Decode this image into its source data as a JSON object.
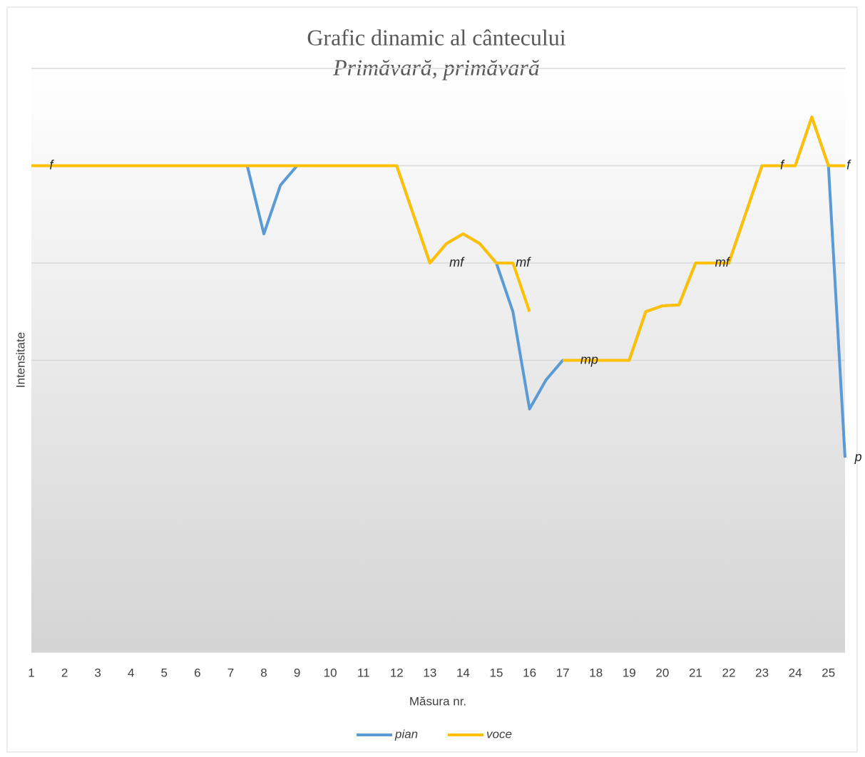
{
  "chart_data": {
    "type": "line",
    "title": "Grafic dinamic al cântecului",
    "subtitle": "Primăvară, primăvară",
    "xlabel": "Măsura nr.",
    "ylabel": "Intensitate",
    "x": [
      1,
      1.5,
      2,
      2.5,
      3,
      3.5,
      4,
      4.5,
      5,
      5.5,
      6,
      6.5,
      7,
      7.5,
      8,
      8.5,
      9,
      9.5,
      10,
      10.5,
      11,
      11.5,
      12,
      12.5,
      13,
      13.5,
      14,
      14.5,
      15,
      15.5,
      16,
      16.5,
      17,
      17.5,
      18,
      18.5,
      19,
      19.5,
      20,
      20.5,
      21,
      21.5,
      22,
      22.5,
      23,
      23.5,
      24,
      24.5,
      25,
      25.5
    ],
    "series": [
      {
        "name": "pian",
        "color": "#5b9bd5",
        "values": [
          5,
          5,
          5,
          5,
          5,
          5,
          5,
          5,
          5,
          5,
          5,
          5,
          5,
          5,
          4.3,
          4.8,
          5,
          5,
          5,
          5,
          5,
          5,
          5,
          4.5,
          4,
          4.2,
          4.3,
          4.2,
          4,
          3.5,
          2.5,
          2.8,
          3,
          3,
          3,
          3,
          3,
          3.5,
          3.56,
          3.57,
          4,
          4,
          4,
          4.5,
          5,
          5,
          5,
          5.5,
          5,
          2
        ]
      },
      {
        "name": "voce",
        "color": "#ffc000",
        "values": [
          5,
          5,
          5,
          5,
          5,
          5,
          5,
          5,
          5,
          5,
          5,
          5,
          5,
          5,
          5,
          5,
          5,
          5,
          5,
          5,
          5,
          5,
          5,
          4.5,
          4,
          4.2,
          4.3,
          4.2,
          4,
          4,
          3.5,
          null,
          3,
          3,
          3,
          3,
          3,
          3.5,
          3.56,
          3.57,
          4,
          4,
          4,
          4.5,
          5,
          5,
          5,
          5.5,
          5,
          5
        ]
      }
    ],
    "annotations": [
      {
        "text": "f",
        "x": 1.6,
        "y": 5
      },
      {
        "text": "mf",
        "x": 13.8,
        "y": 4
      },
      {
        "text": "mf",
        "x": 15.8,
        "y": 4
      },
      {
        "text": "mp",
        "x": 17.8,
        "y": 3
      },
      {
        "text": "mf",
        "x": 21.8,
        "y": 4
      },
      {
        "text": "f",
        "x": 23.6,
        "y": 5
      },
      {
        "text": "f",
        "x": 25.6,
        "y": 5
      },
      {
        "text": "p",
        "x": 25.9,
        "y": 2
      }
    ],
    "xlim": [
      1,
      25.5
    ],
    "xticks": [
      1,
      2,
      3,
      4,
      5,
      6,
      7,
      8,
      9,
      10,
      11,
      12,
      13,
      14,
      15,
      16,
      17,
      18,
      19,
      20,
      21,
      22,
      23,
      24,
      25
    ],
    "ylim": [
      0,
      6
    ],
    "yticks": [
      3,
      4,
      5,
      6
    ],
    "grid": true,
    "legend": "bottom"
  }
}
